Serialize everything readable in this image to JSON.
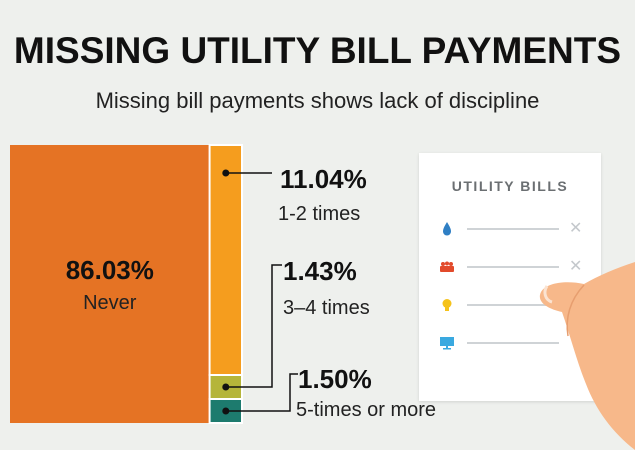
{
  "title": "MISSING UTILITY BILL PAYMENTS",
  "subtitle": "Missing bill payments shows lack of discipline",
  "chart_data": {
    "type": "bar",
    "title": "MISSING UTILITY BILL PAYMENTS",
    "subtitle": "Missing bill payments shows lack of discipline",
    "series": [
      {
        "name": "Never",
        "value": 86.03,
        "value_label": "86.03%",
        "color": "#e57324"
      },
      {
        "name": "1-2 times",
        "value": 11.04,
        "value_label": "11.04%",
        "color": "#f59d1e"
      },
      {
        "name": "3–4 times",
        "value": 1.43,
        "value_label": "1.43%",
        "color": "#b5b53a"
      },
      {
        "name": "5-times or more",
        "value": 1.5,
        "value_label": "1.50%",
        "color": "#1d7b6e"
      }
    ]
  },
  "illustration": {
    "document_title": "UTILITY BILLS",
    "icons": [
      "water-drop-icon",
      "gas-flame-icon",
      "light-bulb-icon",
      "monitor-icon"
    ],
    "icon_colors": [
      "#2f7fc4",
      "#e24a2b",
      "#f5c21a",
      "#3aa9e0"
    ],
    "hand_color": "#f7b88a"
  }
}
